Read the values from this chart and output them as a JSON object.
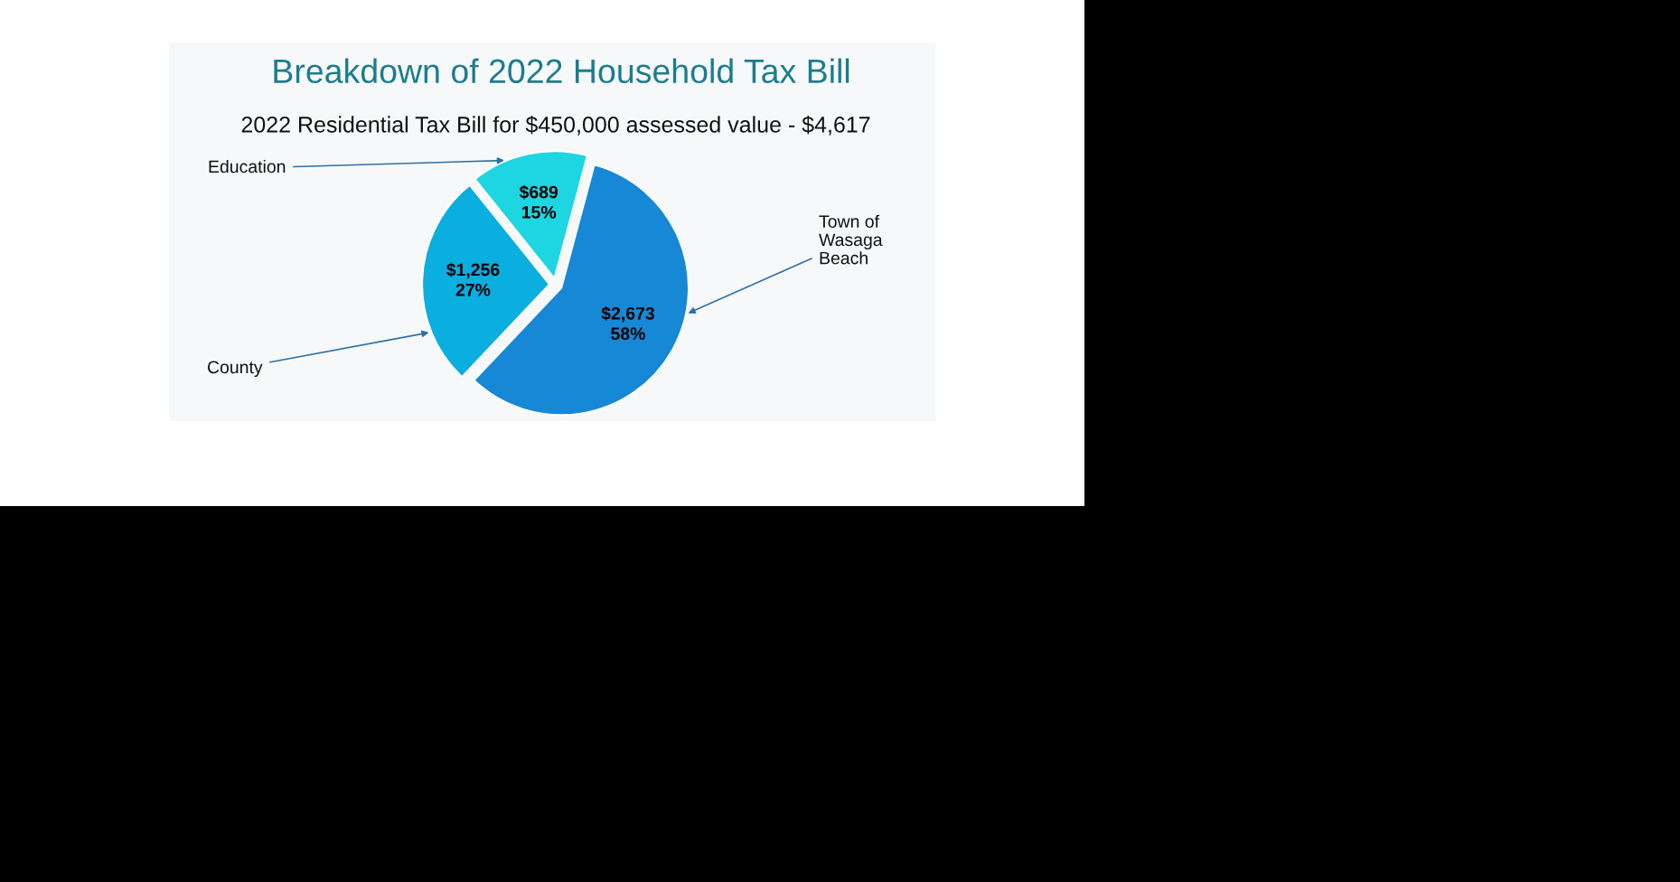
{
  "chart_data": {
    "type": "pie",
    "title": "Breakdown of 2022 Household Tax Bill",
    "subtitle": "2022 Residential Tax Bill for $450,000 assessed value - $4,617",
    "categories": [
      "Town of\nWasaga\nBeach",
      "County",
      "Education"
    ],
    "values": [
      2673,
      1256,
      689
    ],
    "colors": [
      "#1688d6",
      "#0aaedf",
      "#1ed5e2"
    ],
    "value_labels": [
      "$2,673\n58%",
      "$1,256\n27%",
      "$689\n15%"
    ]
  }
}
